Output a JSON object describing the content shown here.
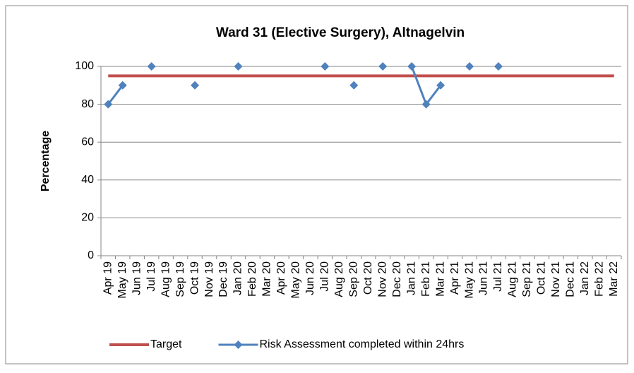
{
  "chart_data": {
    "type": "line",
    "title": "Ward 31 (Elective Surgery), Altnagelvin",
    "y_label": "Percentage",
    "categories": [
      "Apr 19",
      "May 19",
      "Jun 19",
      "Jul 19",
      "Aug 19",
      "Sep 19",
      "Oct 19",
      "Nov 19",
      "Dec 19",
      "Jan 20",
      "Feb 20",
      "Mar 20",
      "Apr 20",
      "May 20",
      "Jun 20",
      "Jul 20",
      "Aug 20",
      "Sep 20",
      "Oct 20",
      "Nov 20",
      "Dec 20",
      "Jan 21",
      "Feb 21",
      "Mar 21",
      "Apr 21",
      "May 21",
      "Jun 21",
      "Jul 21",
      "Aug 21",
      "Sep 21",
      "Oct 21",
      "Nov 21",
      "Dec 21",
      "Jan 22",
      "Feb 22",
      "Mar 22"
    ],
    "series": [
      {
        "name": "Target",
        "color": "#c0504d",
        "marker": false,
        "values": [
          95,
          95,
          95,
          95,
          95,
          95,
          95,
          95,
          95,
          95,
          95,
          95,
          95,
          95,
          95,
          95,
          95,
          95,
          95,
          95,
          95,
          95,
          95,
          95,
          95,
          95,
          95,
          95,
          95,
          95,
          95,
          95,
          95,
          95,
          95,
          95
        ]
      },
      {
        "name": "Risk Assessment completed within 24hrs",
        "color": "#4f81bd",
        "marker": true,
        "values": [
          80,
          90,
          null,
          100,
          null,
          null,
          90,
          null,
          null,
          100,
          null,
          null,
          null,
          null,
          null,
          100,
          null,
          90,
          null,
          100,
          null,
          100,
          80,
          90,
          null,
          100,
          null,
          100,
          null,
          null,
          null,
          null,
          null,
          null,
          null,
          null
        ]
      }
    ],
    "ylim": [
      0,
      100
    ],
    "yticks": [
      0,
      20,
      40,
      60,
      80,
      100
    ],
    "grid": true,
    "legend": "bottom"
  }
}
